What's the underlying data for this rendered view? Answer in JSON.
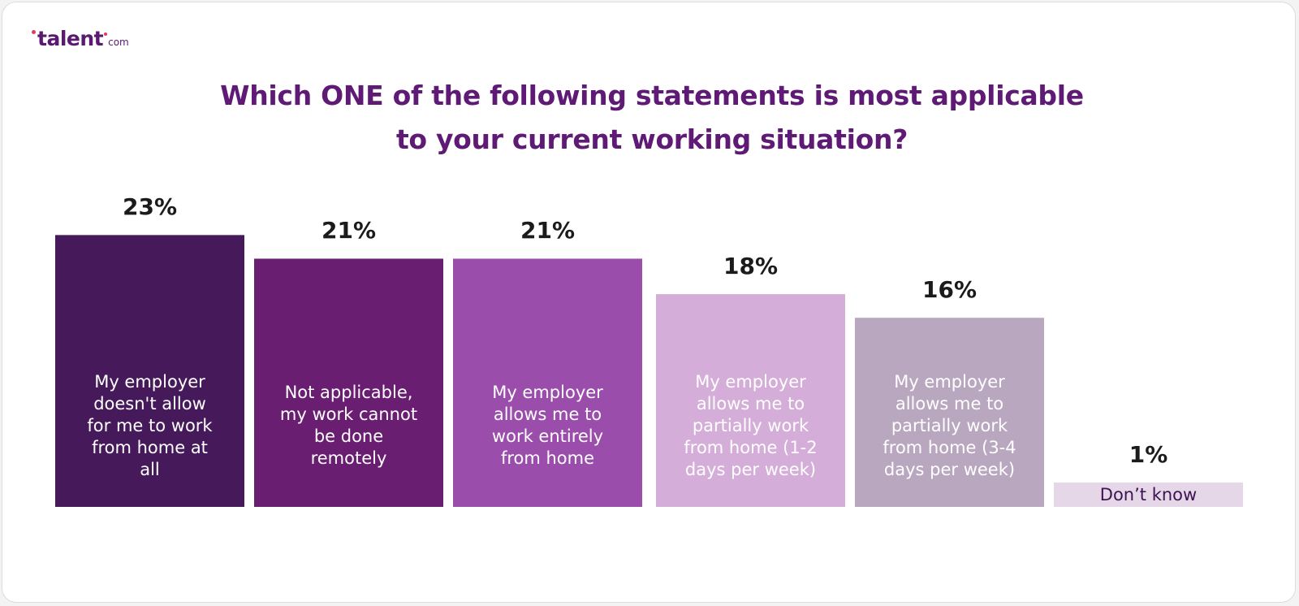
{
  "logo": {
    "word": "talent",
    "suffix": "com"
  },
  "chart_data": {
    "type": "bar",
    "title_lines": [
      "Which ONE of the following statements is most applicable",
      "to your current working situation?"
    ],
    "categories": [
      "My employer doesn't allow for me to work from home at all",
      "Not applicable, my work cannot be done remotely",
      "My employer allows me to work entirely from home",
      "My employer allows me to partially work from home (1-2 days per week)",
      "My employer allows me to partially work from home (3-4 days per week)",
      "Don’t know"
    ],
    "values": [
      23,
      21,
      21,
      18,
      16,
      1
    ],
    "value_labels": [
      "23%",
      "21%",
      "21%",
      "18%",
      "16%",
      "1%"
    ],
    "colors": [
      "#461a5a",
      "#6a1e71",
      "#9b4dab",
      "#d4aed8",
      "#b9a7c0",
      "#e5d6e8"
    ],
    "label_colors": [
      "#ffffff",
      "#ffffff",
      "#ffffff",
      "#ffffff",
      "#ffffff",
      "#3d1452"
    ],
    "ylim": [
      0,
      23
    ],
    "grid": false,
    "legend": "none"
  }
}
